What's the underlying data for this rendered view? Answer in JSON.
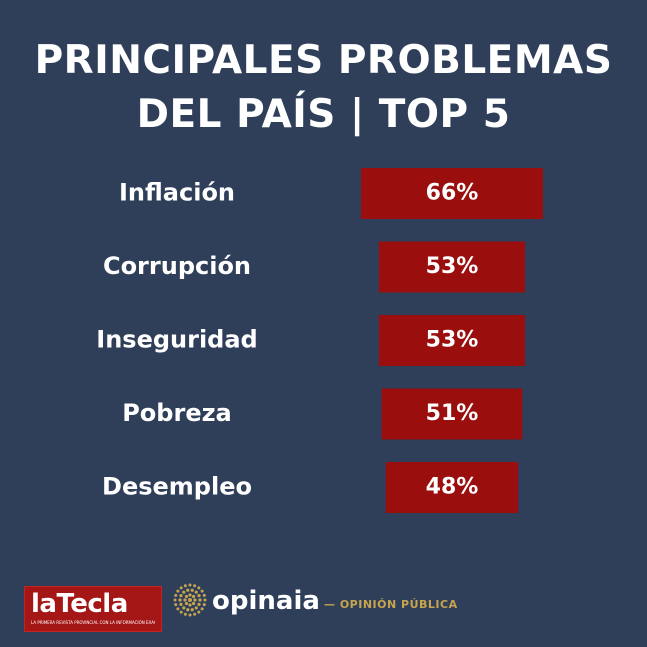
{
  "header": {
    "title_line1": "PRINCIPALES PROBLEMAS",
    "title_line2": "DEL PAÍS | TOP 5"
  },
  "colors": {
    "background": "#2f3f5a",
    "bar": "#9a0e0e",
    "text": "#ffffff",
    "accent_gold": "#c8a44d"
  },
  "chart_data": {
    "type": "bar",
    "orientation": "horizontal",
    "categories": [
      "Inflación",
      "Corrupción",
      "Inseguridad",
      "Pobreza",
      "Desempleo"
    ],
    "values": [
      66,
      53,
      53,
      51,
      48
    ],
    "data_labels": [
      "66%",
      "53%",
      "53%",
      "51%",
      "48%"
    ],
    "title": "PRINCIPALES PROBLEMAS DEL PAÍS | TOP 5",
    "xlabel": "",
    "ylabel": "",
    "grid": false,
    "legend": "none"
  },
  "footer": {
    "latecla": {
      "name": "laTecla",
      "tagline": "LA PRIMERA REVISTA PROVINCIAL CON LA INFORMACIÓN EXACTA"
    },
    "opinaia": {
      "name": "opinaia",
      "tagline": "— OPINIÓN PÚBLICA"
    },
    "icons": [
      "sun-burst-icon"
    ]
  }
}
